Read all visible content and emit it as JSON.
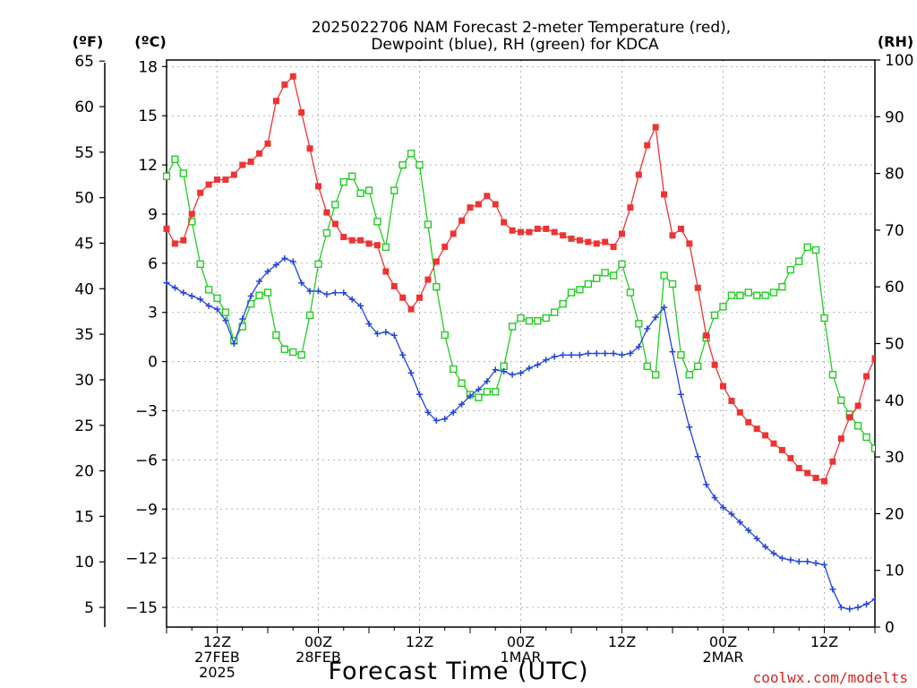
{
  "chart_data": {
    "type": "line",
    "title": [
      "2025022706 NAM Forecast 2-meter Temperature (red),",
      "Dewpoint (blue), RH (green) for KDCA"
    ],
    "xlabel": "Forecast Time (UTC)",
    "credit": "coolwx.com/modelts",
    "grid": true,
    "left_outer_axis": {
      "label": "(ºF)",
      "ticks": [
        5,
        10,
        15,
        20,
        25,
        30,
        35,
        40,
        45,
        50,
        55,
        60,
        65
      ],
      "tick_labels": [
        "5",
        "10",
        "15",
        "20",
        "25",
        "30",
        "35",
        "40",
        "45",
        "50",
        "55",
        "60",
        "65"
      ]
    },
    "left_axis": {
      "label": "(ºC)",
      "ylim": [
        -16.2,
        18.4
      ],
      "ticks": [
        -15,
        -12,
        -9,
        -6,
        -3,
        0,
        3,
        6,
        9,
        12,
        15,
        18
      ],
      "tick_labels": [
        "−15",
        "−12",
        "−9",
        "−6",
        "−3",
        "0",
        "3",
        "6",
        "9",
        "12",
        "15",
        "18"
      ]
    },
    "right_axis": {
      "label": "(RH)",
      "ylim": [
        0,
        100
      ],
      "ticks": [
        0,
        10,
        20,
        30,
        40,
        50,
        60,
        70,
        80,
        90,
        100
      ],
      "tick_labels": [
        "0",
        "10",
        "20",
        "30",
        "40",
        "50",
        "60",
        "70",
        "80",
        "90",
        "100"
      ]
    },
    "x_axis": {
      "unit": "forecast hour",
      "xlim": [
        0,
        84
      ],
      "ticks": [
        {
          "x": 6,
          "lines": [
            "12Z",
            "27FEB",
            "2025"
          ]
        },
        {
          "x": 18,
          "lines": [
            "00Z",
            "28FEB"
          ]
        },
        {
          "x": 30,
          "lines": [
            "12Z"
          ]
        },
        {
          "x": 42,
          "lines": [
            "00Z",
            "1MAR"
          ]
        },
        {
          "x": 54,
          "lines": [
            "12Z"
          ]
        },
        {
          "x": 66,
          "lines": [
            "00Z",
            "2MAR"
          ]
        },
        {
          "x": 78,
          "lines": [
            "12Z"
          ]
        }
      ]
    },
    "series": [
      {
        "name": "2-meter Temperature",
        "axis": "left",
        "color": "#ee3333",
        "marker": "filled-square",
        "x": [
          0,
          1,
          2,
          3,
          4,
          5,
          6,
          7,
          8,
          9,
          10,
          11,
          12,
          13,
          14,
          15,
          16,
          17,
          18,
          19,
          20,
          21,
          22,
          23,
          24,
          25,
          26,
          27,
          28,
          29,
          30,
          31,
          32,
          33,
          34,
          35,
          36,
          37,
          38,
          39,
          40,
          41,
          42,
          43,
          44,
          45,
          46,
          47,
          48,
          49,
          50,
          51,
          52,
          53,
          54,
          55,
          56,
          57,
          58,
          59,
          60,
          61,
          62,
          63,
          64,
          65,
          66,
          67,
          68,
          69,
          70,
          71,
          72,
          73,
          74,
          75,
          76,
          77,
          78,
          79,
          80,
          81,
          82,
          83,
          84
        ],
        "values": [
          8.1,
          7.2,
          7.4,
          9.0,
          10.3,
          10.8,
          11.1,
          11.1,
          11.4,
          12.0,
          12.2,
          12.7,
          13.3,
          15.9,
          16.9,
          17.4,
          15.2,
          13.0,
          10.7,
          9.1,
          8.4,
          7.6,
          7.4,
          7.4,
          7.2,
          7.1,
          5.5,
          4.6,
          3.9,
          3.2,
          3.9,
          5.0,
          6.1,
          7.0,
          7.8,
          8.6,
          9.4,
          9.6,
          10.1,
          9.6,
          8.5,
          8.0,
          7.9,
          7.9,
          8.1,
          8.1,
          7.9,
          7.7,
          7.5,
          7.4,
          7.3,
          7.2,
          7.3,
          7.0,
          7.8,
          9.4,
          11.4,
          13.2,
          14.3,
          10.2,
          7.7,
          8.1,
          7.2,
          4.5,
          1.6,
          -0.2,
          -1.5,
          -2.4,
          -3.1,
          -3.7,
          -4.1,
          -4.5,
          -5.0,
          -5.4,
          -5.9,
          -6.5,
          -6.8,
          -7.1,
          -7.3,
          -6.1,
          -4.7,
          -3.4,
          -2.7,
          -0.9,
          0.2
        ]
      },
      {
        "name": "Dewpoint",
        "axis": "left",
        "color": "#2244dd",
        "marker": "plus",
        "x": [
          0,
          1,
          2,
          3,
          4,
          5,
          6,
          7,
          8,
          9,
          10,
          11,
          12,
          13,
          14,
          15,
          16,
          17,
          18,
          19,
          20,
          21,
          22,
          23,
          24,
          25,
          26,
          27,
          28,
          29,
          30,
          31,
          32,
          33,
          34,
          35,
          36,
          37,
          38,
          39,
          40,
          41,
          42,
          43,
          44,
          45,
          46,
          47,
          48,
          49,
          50,
          51,
          52,
          53,
          54,
          55,
          56,
          57,
          58,
          59,
          60,
          61,
          62,
          63,
          64,
          65,
          66,
          67,
          68,
          69,
          70,
          71,
          72,
          73,
          74,
          75,
          76,
          77,
          78,
          79,
          80,
          81,
          82,
          83,
          84
        ],
        "values": [
          4.8,
          4.5,
          4.2,
          4.0,
          3.8,
          3.4,
          3.2,
          2.5,
          1.1,
          2.6,
          4.0,
          4.9,
          5.5,
          5.9,
          6.3,
          6.1,
          4.8,
          4.3,
          4.3,
          4.1,
          4.2,
          4.2,
          3.8,
          3.4,
          2.3,
          1.7,
          1.8,
          1.6,
          0.4,
          -0.7,
          -2.0,
          -3.1,
          -3.6,
          -3.5,
          -3.1,
          -2.6,
          -2.1,
          -1.7,
          -1.2,
          -0.5,
          -0.6,
          -0.8,
          -0.7,
          -0.4,
          -0.2,
          0.1,
          0.3,
          0.4,
          0.4,
          0.4,
          0.5,
          0.5,
          0.5,
          0.5,
          0.4,
          0.5,
          0.9,
          2.0,
          2.7,
          3.3,
          0.6,
          -2.0,
          -4.0,
          -5.8,
          -7.5,
          -8.3,
          -8.9,
          -9.3,
          -9.8,
          -10.3,
          -10.8,
          -11.3,
          -11.7,
          -12.0,
          -12.1,
          -12.2,
          -12.2,
          -12.3,
          -12.4,
          -13.9,
          -15.0,
          -15.1,
          -15.0,
          -14.8,
          -14.5
        ]
      },
      {
        "name": "RH",
        "axis": "right",
        "color": "#22cc22",
        "marker": "open-square",
        "x": [
          0,
          1,
          2,
          3,
          4,
          5,
          6,
          7,
          8,
          9,
          10,
          11,
          12,
          13,
          14,
          15,
          16,
          17,
          18,
          19,
          20,
          21,
          22,
          23,
          24,
          25,
          26,
          27,
          28,
          29,
          30,
          31,
          32,
          33,
          34,
          35,
          36,
          37,
          38,
          39,
          40,
          41,
          42,
          43,
          44,
          45,
          46,
          47,
          48,
          49,
          50,
          51,
          52,
          53,
          54,
          55,
          56,
          57,
          58,
          59,
          60,
          61,
          62,
          63,
          64,
          65,
          66,
          67,
          68,
          69,
          70,
          71,
          72,
          73,
          74,
          75,
          76,
          77,
          78,
          79,
          80,
          81,
          82,
          83,
          84
        ],
        "values": [
          79.5,
          82.5,
          80.0,
          71.5,
          64.0,
          59.5,
          58.0,
          55.5,
          50.5,
          53.0,
          57.0,
          58.5,
          59.0,
          51.5,
          49.0,
          48.5,
          48.0,
          55.0,
          64.0,
          69.5,
          74.5,
          78.5,
          79.5,
          76.5,
          77.0,
          71.5,
          67.0,
          77.0,
          81.5,
          83.5,
          81.5,
          71.0,
          60.0,
          51.5,
          45.5,
          43.0,
          41.0,
          40.5,
          41.5,
          41.5,
          46.0,
          53.0,
          54.5,
          54.0,
          54.0,
          54.5,
          55.5,
          57.0,
          59.0,
          59.5,
          60.5,
          61.5,
          62.5,
          62.0,
          64.0,
          59.0,
          53.5,
          46.0,
          44.5,
          62.0,
          60.5,
          48.0,
          44.5,
          46.0,
          51.0,
          55.0,
          56.5,
          58.5,
          58.5,
          59.0,
          58.5,
          58.5,
          59.0,
          60.0,
          63.0,
          64.5,
          67.0,
          66.5,
          54.5,
          44.5,
          40.0,
          37.5,
          35.5,
          33.5,
          31.5
        ]
      }
    ]
  }
}
